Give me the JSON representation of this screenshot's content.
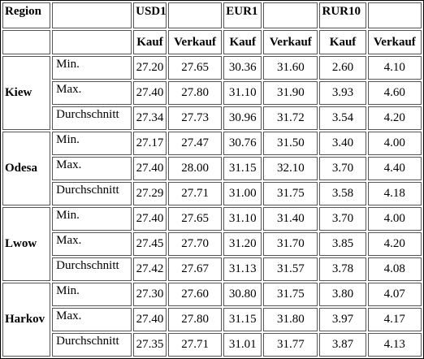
{
  "header": {
    "region": "Region",
    "currencies": [
      "USD1",
      "EUR1",
      "RUR10"
    ],
    "buy": "Kauf",
    "sell": "Verkauf"
  },
  "regions": [
    {
      "name": "Kiew",
      "rows": [
        {
          "stat": "Min.",
          "values": [
            "27.20",
            "27.65",
            "30.36",
            "31.60",
            "2.60",
            "4.10"
          ]
        },
        {
          "stat": "Max.",
          "values": [
            "27.40",
            "27.80",
            "31.10",
            "31.90",
            "3.93",
            "4.60"
          ]
        },
        {
          "stat": "Durchschnitt",
          "values": [
            "27.34",
            "27.73",
            "30.96",
            "31.72",
            "3.54",
            "4.20"
          ]
        }
      ]
    },
    {
      "name": "Odesa",
      "rows": [
        {
          "stat": "Min.",
          "values": [
            "27.17",
            "27.47",
            "30.76",
            "31.50",
            "3.40",
            "4.00"
          ]
        },
        {
          "stat": "Max.",
          "values": [
            "27.40",
            "28.00",
            "31.15",
            "32.10",
            "3.70",
            "4.40"
          ]
        },
        {
          "stat": "Durchschnitt",
          "values": [
            "27.29",
            "27.71",
            "31.00",
            "31.75",
            "3.58",
            "4.18"
          ]
        }
      ]
    },
    {
      "name": "Lwow",
      "rows": [
        {
          "stat": "Min.",
          "values": [
            "27.40",
            "27.65",
            "31.10",
            "31.40",
            "3.70",
            "4.00"
          ]
        },
        {
          "stat": "Max.",
          "values": [
            "27.45",
            "27.70",
            "31.20",
            "31.70",
            "3.85",
            "4.20"
          ]
        },
        {
          "stat": "Durchschnitt",
          "values": [
            "27.42",
            "27.67",
            "31.13",
            "31.57",
            "3.78",
            "4.08"
          ]
        }
      ]
    },
    {
      "name": "Harkov",
      "rows": [
        {
          "stat": "Min.",
          "values": [
            "27.30",
            "27.60",
            "30.80",
            "31.75",
            "3.80",
            "4.07"
          ]
        },
        {
          "stat": "Max.",
          "values": [
            "27.40",
            "27.80",
            "31.15",
            "31.80",
            "3.97",
            "4.17"
          ]
        },
        {
          "stat": "Durchschnitt",
          "values": [
            "27.35",
            "27.71",
            "31.01",
            "31.77",
            "3.87",
            "4.13"
          ]
        }
      ]
    }
  ]
}
